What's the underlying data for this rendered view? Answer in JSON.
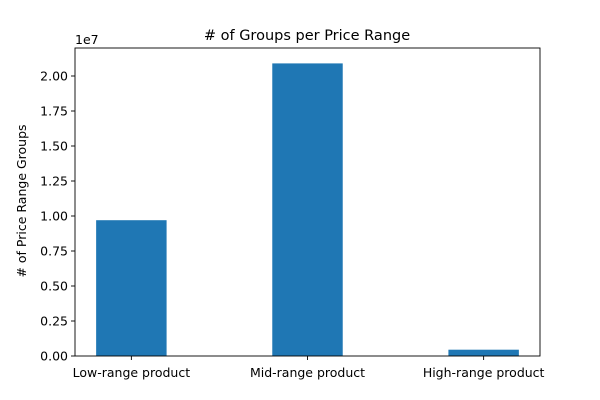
{
  "chart_data": {
    "type": "bar",
    "title": "# of Groups per Price Range",
    "xlabel": "",
    "ylabel": "# of Price Range Groups",
    "y_offset_label": "1e7",
    "categories": [
      "Low-range product",
      "Mid-range product",
      "High-range product"
    ],
    "values": [
      9700000,
      20900000,
      450000
    ],
    "ylim": [
      0,
      22000000
    ],
    "y_ticks": [
      0,
      2500000,
      5000000,
      7500000,
      10000000,
      12500000,
      15000000,
      17500000,
      20000000
    ],
    "y_tick_labels": [
      "0.00",
      "0.25",
      "0.50",
      "0.75",
      "1.00",
      "1.25",
      "1.50",
      "1.75",
      "2.00"
    ],
    "bar_color": "#1f77b4",
    "grid": false,
    "legend": "none"
  }
}
